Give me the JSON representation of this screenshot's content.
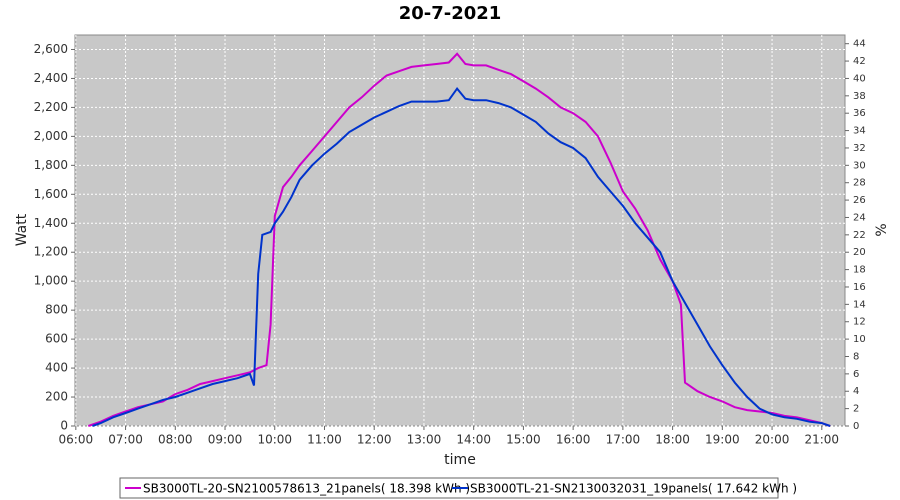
{
  "chart_data": {
    "type": "line",
    "title": "20-7-2021",
    "x_label": "time",
    "y_label": "Watt",
    "y2_label": "%",
    "xlim": [
      "05:59",
      "21:28"
    ],
    "xticks": [
      "06:00",
      "07:00",
      "08:00",
      "09:00",
      "10:00",
      "11:00",
      "12:00",
      "13:00",
      "14:00",
      "15:00",
      "16:00",
      "17:00",
      "18:00",
      "19:00",
      "20:00",
      "21:00"
    ],
    "ylim": [
      0,
      2700
    ],
    "yticks": [
      0,
      200,
      400,
      600,
      800,
      {
        "value": 1000,
        "label": "1,000"
      },
      {
        "value": 1200,
        "label": "1,200"
      },
      {
        "value": 1400,
        "label": "1,400"
      },
      {
        "value": 1600,
        "label": "1,600"
      },
      {
        "value": 1800,
        "label": "1,800"
      },
      {
        "value": 2000,
        "label": "2,000"
      },
      {
        "value": 2200,
        "label": "2,200"
      },
      {
        "value": 2400,
        "label": "2,400"
      },
      {
        "value": 2600,
        "label": "2,600"
      }
    ],
    "y2lim": [
      0,
      45
    ],
    "y2ticks": [
      0,
      2,
      4,
      6,
      8,
      10,
      12,
      14,
      16,
      18,
      20,
      22,
      24,
      26,
      28,
      30,
      32,
      34,
      36,
      38,
      40,
      42,
      44
    ],
    "grid": true,
    "series": [
      {
        "name": "SB3000TL-20-SN2100578613_21panels( 18.398 kWh )",
        "color": "#cc00cc",
        "x": [
          "06:15",
          "06:30",
          "06:45",
          "07:00",
          "07:15",
          "07:30",
          "07:45",
          "08:00",
          "08:15",
          "08:30",
          "08:45",
          "09:00",
          "09:15",
          "09:30",
          "09:40",
          "09:50",
          "09:55",
          "10:00",
          "10:10",
          "10:20",
          "10:30",
          "10:45",
          "11:00",
          "11:15",
          "11:30",
          "11:45",
          "12:00",
          "12:15",
          "12:30",
          "12:45",
          "13:00",
          "13:15",
          "13:30",
          "13:40",
          "13:50",
          "14:00",
          "14:15",
          "14:30",
          "14:45",
          "15:00",
          "15:15",
          "15:30",
          "15:45",
          "16:00",
          "16:15",
          "16:30",
          "16:45",
          "17:00",
          "17:15",
          "17:30",
          "17:45",
          "18:00",
          "18:10",
          "18:15",
          "18:30",
          "18:45",
          "19:00",
          "19:15",
          "19:30",
          "19:45",
          "20:00",
          "20:15",
          "20:30",
          "20:45",
          "21:00",
          "21:10"
        ],
        "values": [
          0,
          30,
          70,
          100,
          130,
          150,
          170,
          220,
          250,
          290,
          310,
          330,
          350,
          370,
          400,
          420,
          700,
          1450,
          1650,
          1720,
          1800,
          1900,
          2000,
          2100,
          2200,
          2270,
          2350,
          2420,
          2450,
          2480,
          2490,
          2500,
          2510,
          2570,
          2500,
          2490,
          2490,
          2460,
          2430,
          2380,
          2330,
          2270,
          2200,
          2160,
          2100,
          2000,
          1820,
          1620,
          1500,
          1350,
          1150,
          1000,
          840,
          300,
          240,
          200,
          170,
          130,
          110,
          100,
          90,
          70,
          60,
          40,
          20,
          0
        ]
      },
      {
        "name": "SB3000TL-21-SN2130032031_19panels( 17.642 kWh )",
        "color": "#0033cc",
        "x": [
          "06:20",
          "06:30",
          "06:45",
          "07:00",
          "07:15",
          "07:30",
          "07:45",
          "08:00",
          "08:15",
          "08:30",
          "08:45",
          "09:00",
          "09:15",
          "09:30",
          "09:35",
          "09:40",
          "09:45",
          "09:55",
          "10:00",
          "10:10",
          "10:20",
          "10:30",
          "10:45",
          "11:00",
          "11:15",
          "11:30",
          "11:45",
          "12:00",
          "12:15",
          "12:30",
          "12:45",
          "13:00",
          "13:15",
          "13:30",
          "13:40",
          "13:50",
          "14:00",
          "14:15",
          "14:30",
          "14:45",
          "15:00",
          "15:15",
          "15:30",
          "15:45",
          "16:00",
          "16:15",
          "16:30",
          "16:45",
          "17:00",
          "17:15",
          "17:30",
          "17:45",
          "18:00",
          "18:15",
          "18:30",
          "18:45",
          "19:00",
          "19:15",
          "19:30",
          "19:45",
          "20:00",
          "20:15",
          "20:30",
          "20:45",
          "21:00",
          "21:10"
        ],
        "values": [
          0,
          20,
          60,
          90,
          120,
          150,
          180,
          200,
          230,
          260,
          290,
          310,
          330,
          360,
          280,
          1050,
          1320,
          1340,
          1400,
          1480,
          1580,
          1700,
          1800,
          1880,
          1950,
          2030,
          2080,
          2130,
          2170,
          2210,
          2240,
          2240,
          2240,
          2250,
          2330,
          2260,
          2250,
          2250,
          2230,
          2200,
          2150,
          2100,
          2020,
          1960,
          1920,
          1850,
          1720,
          1620,
          1520,
          1400,
          1300,
          1200,
          1000,
          850,
          700,
          550,
          420,
          300,
          200,
          120,
          80,
          60,
          50,
          30,
          20,
          0
        ]
      }
    ]
  }
}
